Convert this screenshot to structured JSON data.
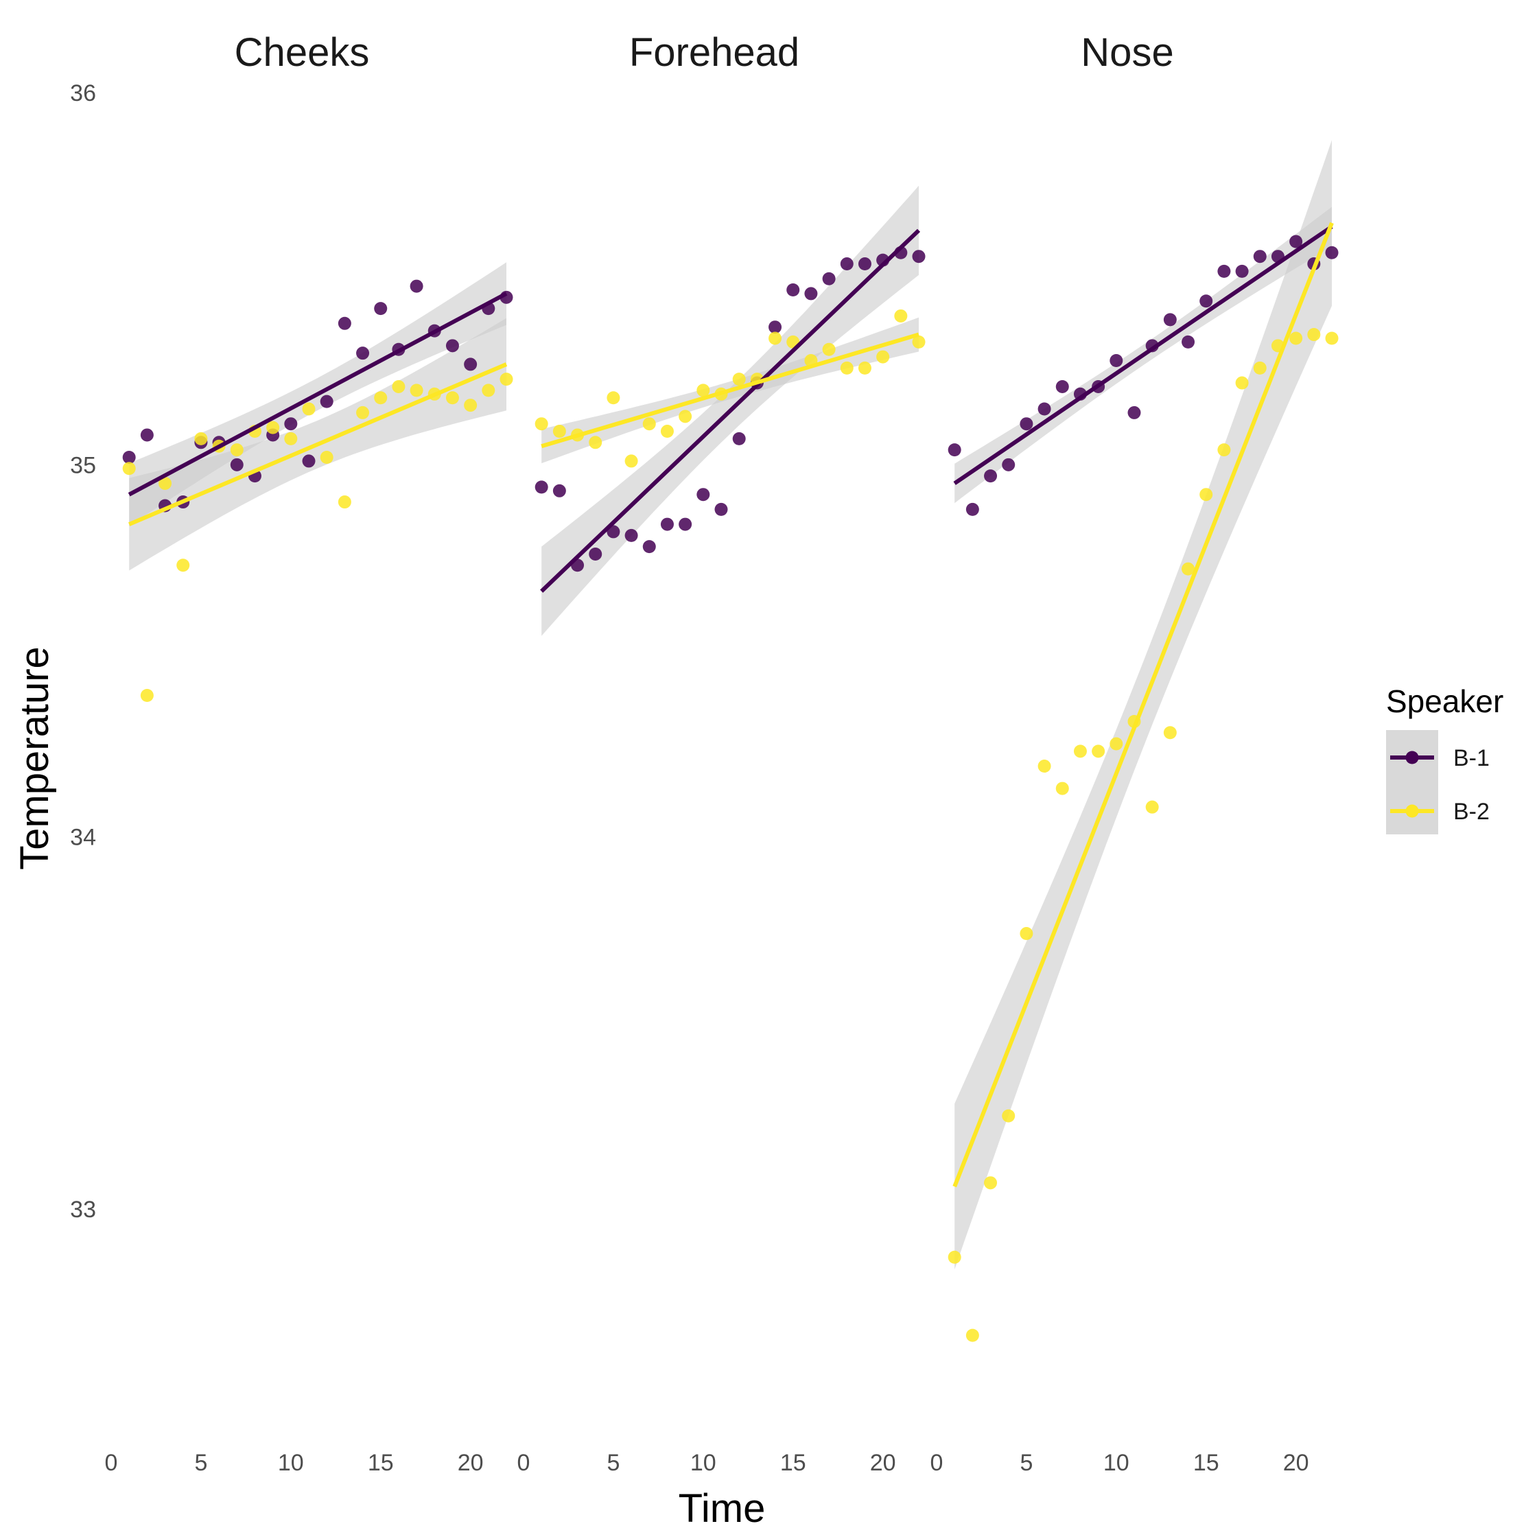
{
  "chart_data": {
    "type": "scatter",
    "facets": [
      "Cheeks",
      "Forehead",
      "Nose"
    ],
    "xlabel": "Time",
    "ylabel": "Temperature",
    "xlim": [
      0,
      22
    ],
    "ylim": [
      32.45,
      36.05
    ],
    "x_ticks": [
      0,
      5,
      10,
      15,
      20
    ],
    "y_ticks": [
      33,
      34,
      35,
      36
    ],
    "grid": false,
    "legend": {
      "title": "Speaker",
      "position": "right"
    },
    "trend": "linear fit with confidence band",
    "colors": {
      "B-1": "#440154",
      "B-2": "#fde725",
      "band": "#cccccc"
    },
    "series": [
      {
        "name": "B-1",
        "panels": {
          "Cheeks": {
            "x": [
              1,
              2,
              3,
              4,
              5,
              6,
              7,
              8,
              9,
              10,
              11,
              12,
              13,
              14,
              15,
              16,
              17,
              18,
              19,
              20,
              21,
              22
            ],
            "y": [
              35.02,
              35.08,
              34.89,
              34.9,
              35.06,
              35.06,
              35.0,
              34.97,
              35.08,
              35.11,
              35.01,
              35.17,
              35.38,
              35.3,
              35.42,
              35.31,
              35.48,
              35.36,
              35.32,
              35.27,
              35.42,
              35.45
            ],
            "fit": [
              34.92,
              35.46
            ]
          },
          "Forehead": {
            "x": [
              1,
              2,
              3,
              4,
              5,
              6,
              7,
              8,
              9,
              10,
              11,
              12,
              13,
              14,
              15,
              16,
              17,
              18,
              19,
              20,
              21,
              22
            ],
            "y": [
              34.94,
              34.93,
              34.73,
              34.76,
              34.82,
              34.81,
              34.78,
              34.84,
              34.84,
              34.92,
              34.88,
              35.07,
              35.22,
              35.37,
              35.47,
              35.46,
              35.5,
              35.54,
              35.54,
              35.55,
              35.57,
              35.56
            ],
            "fit": [
              34.66,
              35.63
            ]
          },
          "Nose": {
            "x": [
              1,
              2,
              3,
              4,
              5,
              6,
              7,
              8,
              9,
              10,
              11,
              12,
              13,
              14,
              15,
              16,
              17,
              18,
              19,
              20,
              21,
              22
            ],
            "y": [
              35.04,
              34.88,
              34.97,
              35.0,
              35.11,
              35.15,
              35.21,
              35.19,
              35.21,
              35.28,
              35.14,
              35.32,
              35.39,
              35.33,
              35.44,
              35.52,
              35.52,
              35.56,
              35.56,
              35.6,
              35.54,
              35.57
            ],
            "fit": [
              34.95,
              35.64
            ]
          }
        }
      },
      {
        "name": "B-2",
        "panels": {
          "Cheeks": {
            "x": [
              1,
              2,
              3,
              4,
              5,
              6,
              7,
              8,
              9,
              10,
              11,
              12,
              13,
              14,
              15,
              16,
              17,
              18,
              19,
              20,
              21,
              22
            ],
            "y": [
              34.99,
              34.38,
              34.95,
              34.73,
              35.07,
              35.05,
              35.04,
              35.09,
              35.1,
              35.07,
              35.15,
              35.02,
              34.9,
              35.14,
              35.18,
              35.21,
              35.2,
              35.19,
              35.18,
              35.16,
              35.2,
              35.23
            ],
            "fit": [
              34.84,
              35.27
            ]
          },
          "Forehead": {
            "x": [
              1,
              2,
              3,
              4,
              5,
              6,
              7,
              8,
              9,
              10,
              11,
              12,
              13,
              14,
              15,
              16,
              17,
              18,
              19,
              20,
              21,
              22
            ],
            "y": [
              35.11,
              35.09,
              35.08,
              35.06,
              35.18,
              35.01,
              35.11,
              35.09,
              35.13,
              35.2,
              35.19,
              35.23,
              35.23,
              35.34,
              35.33,
              35.28,
              35.31,
              35.26,
              35.26,
              35.29,
              35.4,
              35.33
            ],
            "fit": [
              35.05,
              35.35
            ]
          },
          "Nose": {
            "x": [
              1,
              2,
              3,
              4,
              5,
              6,
              7,
              8,
              9,
              10,
              11,
              12,
              13,
              14,
              15,
              16,
              17,
              18,
              19,
              20,
              21,
              22
            ],
            "y": [
              32.87,
              32.66,
              33.07,
              33.25,
              33.74,
              34.19,
              34.13,
              34.23,
              34.23,
              34.25,
              34.31,
              34.08,
              34.28,
              34.72,
              34.92,
              35.04,
              35.22,
              35.26,
              35.32,
              35.34,
              35.35,
              35.34
            ],
            "fit": [
              33.06,
              35.65
            ]
          }
        }
      }
    ]
  }
}
